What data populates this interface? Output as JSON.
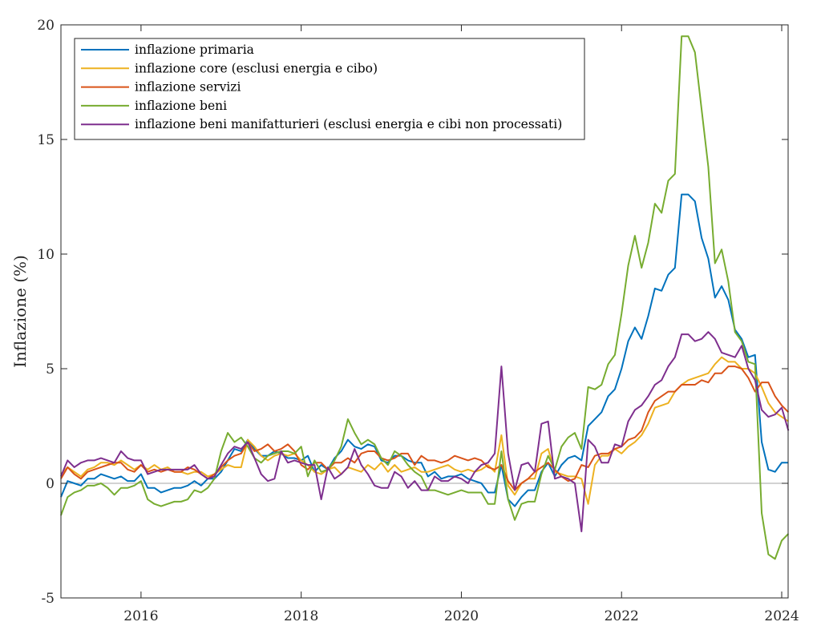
{
  "chart_data": {
    "type": "line",
    "ylabel": "Inflazione (%)",
    "xlim": [
      2015.0,
      2024.08
    ],
    "ylim": [
      -5,
      20
    ],
    "xticks": [
      2016,
      2018,
      2020,
      2022,
      2024
    ],
    "xtick_labels": [
      "2016",
      "2018",
      "2020",
      "2022",
      "2024"
    ],
    "yticks": [
      -5,
      0,
      5,
      10,
      15,
      20
    ],
    "ytick_labels": [
      "-5",
      "0",
      "5",
      "10",
      "15",
      "20"
    ],
    "zero_line": true,
    "grid": false,
    "legend_position": "top-left",
    "x": [
      2015.0,
      2015.0833,
      2015.1667,
      2015.25,
      2015.3333,
      2015.4167,
      2015.5,
      2015.5833,
      2015.6667,
      2015.75,
      2015.8333,
      2015.9167,
      2016.0,
      2016.0833,
      2016.1667,
      2016.25,
      2016.3333,
      2016.4167,
      2016.5,
      2016.5833,
      2016.6667,
      2016.75,
      2016.8333,
      2016.9167,
      2017.0,
      2017.0833,
      2017.1667,
      2017.25,
      2017.3333,
      2017.4167,
      2017.5,
      2017.5833,
      2017.6667,
      2017.75,
      2017.8333,
      2017.9167,
      2018.0,
      2018.0833,
      2018.1667,
      2018.25,
      2018.3333,
      2018.4167,
      2018.5,
      2018.5833,
      2018.6667,
      2018.75,
      2018.8333,
      2018.9167,
      2019.0,
      2019.0833,
      2019.1667,
      2019.25,
      2019.3333,
      2019.4167,
      2019.5,
      2019.5833,
      2019.6667,
      2019.75,
      2019.8333,
      2019.9167,
      2020.0,
      2020.0833,
      2020.1667,
      2020.25,
      2020.3333,
      2020.4167,
      2020.5,
      2020.5833,
      2020.6667,
      2020.75,
      2020.8333,
      2020.9167,
      2021.0,
      2021.0833,
      2021.1667,
      2021.25,
      2021.3333,
      2021.4167,
      2021.5,
      2021.5833,
      2021.6667,
      2021.75,
      2021.8333,
      2021.9167,
      2022.0,
      2022.0833,
      2022.1667,
      2022.25,
      2022.3333,
      2022.4167,
      2022.5,
      2022.5833,
      2022.6667,
      2022.75,
      2022.8333,
      2022.9167,
      2023.0,
      2023.0833,
      2023.1667,
      2023.25,
      2023.3333,
      2023.4167,
      2023.5,
      2023.5833,
      2023.6667,
      2023.75,
      2023.8333,
      2023.9167,
      2024.0,
      2024.0833
    ],
    "series": [
      {
        "name": "inflazione primaria",
        "color": "#0072BD",
        "values": [
          -0.6,
          0.1,
          0.0,
          -0.1,
          0.2,
          0.2,
          0.4,
          0.3,
          0.2,
          0.3,
          0.1,
          0.1,
          0.4,
          -0.2,
          -0.2,
          -0.4,
          -0.3,
          -0.2,
          -0.2,
          -0.1,
          0.1,
          -0.1,
          0.2,
          0.2,
          0.5,
          1.0,
          1.5,
          1.4,
          1.9,
          1.5,
          1.2,
          1.2,
          1.4,
          1.3,
          1.1,
          1.1,
          1.0,
          1.2,
          0.5,
          0.8,
          0.6,
          1.1,
          1.4,
          1.9,
          1.6,
          1.5,
          1.7,
          1.6,
          1.0,
          0.9,
          1.2,
          1.2,
          1.0,
          0.9,
          0.9,
          0.3,
          0.5,
          0.2,
          0.3,
          0.3,
          0.4,
          0.2,
          0.1,
          0.0,
          -0.4,
          -0.4,
          0.8,
          -0.7,
          -1.0,
          -0.6,
          -0.3,
          -0.3,
          0.5,
          0.9,
          0.3,
          0.8,
          1.1,
          1.2,
          1.0,
          2.5,
          2.8,
          3.1,
          3.8,
          4.1,
          5.0,
          6.2,
          6.8,
          6.3,
          7.3,
          8.5,
          8.4,
          9.1,
          9.4,
          12.6,
          12.6,
          12.3,
          10.7,
          9.8,
          8.1,
          8.6,
          8.0,
          6.7,
          6.3,
          5.5,
          5.6,
          1.8,
          0.6,
          0.5,
          0.9,
          0.9
        ]
      },
      {
        "name": "inflazione core (esclusi energia e cibo)",
        "color": "#EDB120",
        "values": [
          0.4,
          0.7,
          0.5,
          0.3,
          0.6,
          0.7,
          0.9,
          0.9,
          0.8,
          1.0,
          0.8,
          0.6,
          0.8,
          0.6,
          0.8,
          0.6,
          0.7,
          0.5,
          0.5,
          0.4,
          0.5,
          0.5,
          0.3,
          0.4,
          0.6,
          0.8,
          0.7,
          0.7,
          1.9,
          1.6,
          1.2,
          1.0,
          1.2,
          1.3,
          1.2,
          1.3,
          1.0,
          0.8,
          0.5,
          0.4,
          0.6,
          0.7,
          0.4,
          0.7,
          0.6,
          0.5,
          0.8,
          0.6,
          0.9,
          0.5,
          0.8,
          0.5,
          0.6,
          0.7,
          0.5,
          0.5,
          0.6,
          0.7,
          0.8,
          0.6,
          0.5,
          0.6,
          0.5,
          0.6,
          0.8,
          0.5,
          2.1,
          -0.1,
          -0.5,
          0.0,
          0.2,
          0.2,
          1.3,
          1.5,
          0.5,
          0.4,
          0.3,
          0.3,
          0.2,
          -0.9,
          0.8,
          1.2,
          1.2,
          1.5,
          1.3,
          1.6,
          1.8,
          2.1,
          2.6,
          3.3,
          3.4,
          3.5,
          4.0,
          4.3,
          4.5,
          4.6,
          4.7,
          4.8,
          5.2,
          5.5,
          5.3,
          5.3,
          5.0,
          5.0,
          4.8,
          4.2,
          3.5,
          3.1,
          2.9,
          2.7
        ]
      },
      {
        "name": "inflazione servizi",
        "color": "#D95319",
        "values": [
          0.2,
          0.7,
          0.4,
          0.2,
          0.5,
          0.6,
          0.7,
          0.8,
          0.9,
          0.9,
          0.6,
          0.5,
          0.8,
          0.5,
          0.6,
          0.5,
          0.6,
          0.5,
          0.5,
          0.7,
          0.6,
          0.4,
          0.2,
          0.4,
          0.7,
          1.0,
          1.2,
          1.3,
          1.8,
          1.4,
          1.5,
          1.7,
          1.4,
          1.5,
          1.7,
          1.4,
          0.8,
          0.6,
          0.9,
          0.9,
          0.6,
          0.9,
          0.9,
          1.1,
          0.9,
          1.3,
          1.4,
          1.4,
          1.1,
          1.0,
          1.1,
          1.3,
          1.3,
          0.8,
          1.2,
          1.0,
          1.0,
          0.9,
          1.0,
          1.2,
          1.1,
          1.0,
          1.1,
          1.0,
          0.7,
          0.6,
          0.8,
          0.1,
          -0.3,
          0.0,
          0.2,
          0.5,
          0.7,
          0.9,
          0.6,
          0.3,
          0.1,
          0.2,
          0.8,
          0.7,
          1.2,
          1.3,
          1.3,
          1.5,
          1.6,
          1.9,
          2.0,
          2.3,
          3.1,
          3.6,
          3.8,
          4.0,
          4.0,
          4.3,
          4.3,
          4.3,
          4.5,
          4.4,
          4.8,
          4.8,
          5.1,
          5.1,
          5.0,
          4.6,
          4.0,
          4.4,
          4.4,
          3.8,
          3.4,
          3.1
        ]
      },
      {
        "name": "inflazione beni",
        "color": "#77AC30",
        "values": [
          -1.4,
          -0.6,
          -0.4,
          -0.3,
          -0.1,
          -0.1,
          0.0,
          -0.2,
          -0.5,
          -0.2,
          -0.2,
          -0.1,
          0.1,
          -0.7,
          -0.9,
          -1.0,
          -0.9,
          -0.8,
          -0.8,
          -0.7,
          -0.3,
          -0.4,
          -0.2,
          0.2,
          1.4,
          2.2,
          1.8,
          2.0,
          1.6,
          1.1,
          0.9,
          1.2,
          1.3,
          1.4,
          1.4,
          1.3,
          1.6,
          0.3,
          1.0,
          0.5,
          0.6,
          1.0,
          1.6,
          2.8,
          2.2,
          1.7,
          1.9,
          1.7,
          1.1,
          0.8,
          1.4,
          1.2,
          0.8,
          0.5,
          0.3,
          -0.3,
          -0.3,
          -0.4,
          -0.5,
          -0.4,
          -0.3,
          -0.4,
          -0.4,
          -0.4,
          -0.9,
          -0.9,
          1.4,
          -0.7,
          -1.6,
          -0.9,
          -0.8,
          -0.8,
          0.4,
          1.2,
          0.6,
          1.6,
          2.0,
          2.2,
          1.5,
          4.2,
          4.1,
          4.3,
          5.2,
          5.6,
          7.4,
          9.5,
          10.8,
          9.4,
          10.5,
          12.2,
          11.8,
          13.2,
          13.5,
          19.5,
          19.5,
          18.8,
          16.3,
          13.8,
          9.6,
          10.2,
          8.8,
          6.6,
          6.2,
          5.3,
          5.2,
          -1.3,
          -3.1,
          -3.3,
          -2.5,
          -2.2
        ]
      },
      {
        "name": "inflazione beni manifatturieri (esclusi energia e cibi non processati)",
        "color": "#7E2F8E",
        "values": [
          0.3,
          1.0,
          0.7,
          0.9,
          1.0,
          1.0,
          1.1,
          1.0,
          0.9,
          1.4,
          1.1,
          1.0,
          1.0,
          0.4,
          0.5,
          0.6,
          0.6,
          0.6,
          0.6,
          0.6,
          0.8,
          0.4,
          0.2,
          0.3,
          0.8,
          1.3,
          1.6,
          1.5,
          1.8,
          1.1,
          0.4,
          0.1,
          0.2,
          1.4,
          0.9,
          1.0,
          0.9,
          0.8,
          0.8,
          -0.7,
          0.7,
          0.2,
          0.4,
          0.7,
          1.5,
          0.8,
          0.4,
          -0.1,
          -0.2,
          -0.2,
          0.5,
          0.3,
          -0.2,
          0.1,
          -0.3,
          -0.3,
          0.3,
          0.1,
          0.1,
          0.3,
          0.2,
          0.0,
          0.5,
          0.8,
          0.9,
          1.3,
          5.1,
          1.3,
          -0.3,
          0.8,
          0.9,
          0.5,
          2.6,
          2.7,
          0.2,
          0.3,
          0.2,
          0.0,
          -2.1,
          1.9,
          1.6,
          0.9,
          0.9,
          1.7,
          1.6,
          2.7,
          3.2,
          3.4,
          3.8,
          4.3,
          4.5,
          5.1,
          5.5,
          6.5,
          6.5,
          6.2,
          6.3,
          6.6,
          6.3,
          5.7,
          5.6,
          5.5,
          6.0,
          5.0,
          4.5,
          3.2,
          2.9,
          3.0,
          3.3,
          2.3
        ]
      }
    ]
  }
}
